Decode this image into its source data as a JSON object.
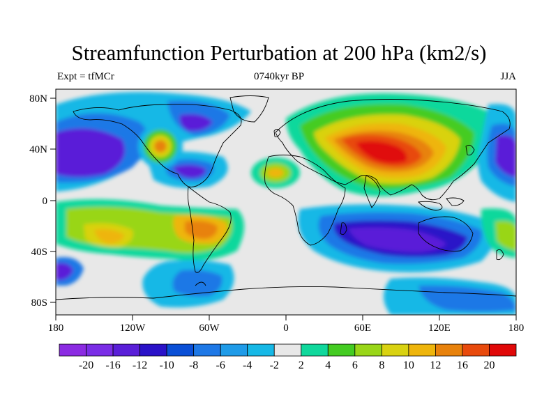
{
  "title": "Streamfunction Perturbation at 200 hPa (km2/s)",
  "subtitle_left": "Expt = tfMCr",
  "subtitle_center": "0740kyr BP",
  "subtitle_right": "JJA",
  "x_ticks": [
    "180",
    "120W",
    "60W",
    "0",
    "60E",
    "120E",
    "180"
  ],
  "y_ticks": [
    "80N",
    "40N",
    "0",
    "40S",
    "80S"
  ],
  "colorbar": {
    "colors": [
      "#8b2be2",
      "#7a2de6",
      "#5a1fd8",
      "#2a12c8",
      "#0a4fd6",
      "#1e78e6",
      "#1f9be8",
      "#16b8e6",
      "#e8e8e8",
      "#10d89c",
      "#44cc22",
      "#99d618",
      "#d9d211",
      "#eeb50c",
      "#e8820c",
      "#e84a0c",
      "#e00808"
    ],
    "labels": [
      "-20",
      "-16",
      "-12",
      "-10",
      "-8",
      "-6",
      "-4",
      "-2",
      "2",
      "4",
      "6",
      "8",
      "10",
      "12",
      "16",
      "20"
    ]
  },
  "palette": {
    "land_bg": "#e8e8e8",
    "coast": "#000000"
  }
}
